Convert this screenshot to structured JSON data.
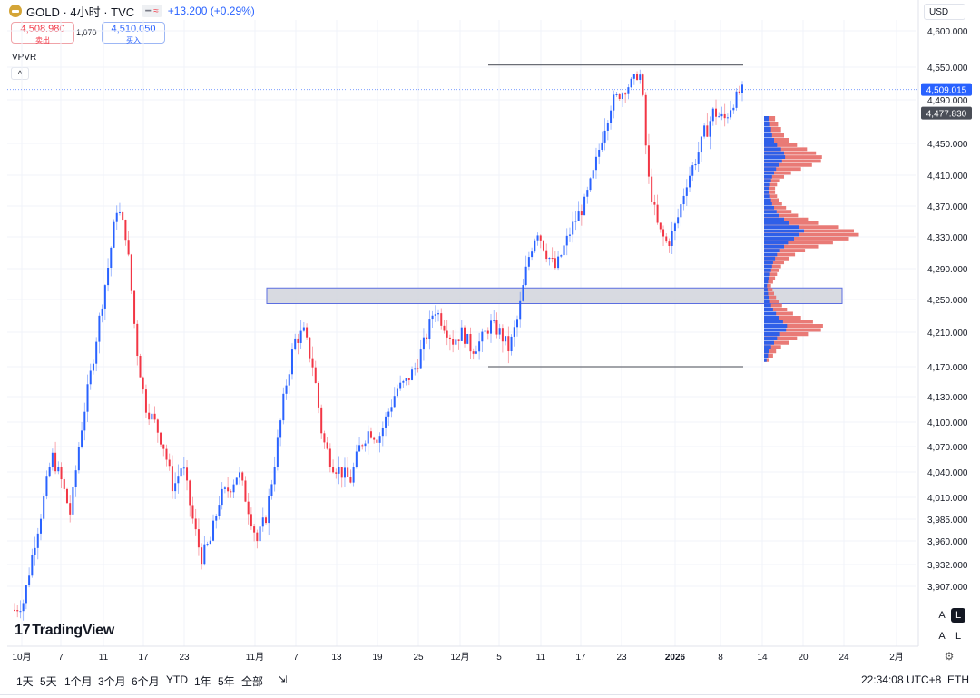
{
  "header": {
    "symbol": "GOLD · 4小时 · TVC",
    "change": "+13.200 (+0.29%)",
    "pill_icons": [
      "minus-icon",
      "wave-icon"
    ]
  },
  "trade": {
    "sell_price": "4,508.980",
    "sell_label": "卖出",
    "spread": "1,070",
    "buy_price": "4,510.050",
    "buy_label": "买入"
  },
  "indicator": {
    "name": "VPVR",
    "collapse": "^"
  },
  "currency": "USD",
  "logo": "TradingView",
  "right_buttons": {
    "a1": "A",
    "l": "L",
    "a2": "A",
    "l2": "L"
  },
  "timeframes": [
    "1天",
    "5天",
    "1个月",
    "3个月",
    "6个月",
    "YTD",
    "1年",
    "5年",
    "全部"
  ],
  "clock": "22:34:08 UTC+8",
  "session": "ETH",
  "colors": {
    "up": "#2962ff",
    "down": "#f23645",
    "vp_up": "#2f5fe8",
    "vp_down": "#e8736f",
    "zone": "#d1d4dc"
  },
  "chart_data": {
    "type": "candlestick",
    "y_ticks": [
      "4,600.000",
      "4,550.000",
      "4,490.000",
      "4,450.000",
      "4,410.000",
      "4,370.000",
      "4,330.000",
      "4,290.000",
      "4,250.000",
      "4,210.000",
      "4,170.000",
      "4,130.000",
      "4,100.000",
      "4,070.000",
      "4,040.000",
      "4,010.000",
      "3,985.000",
      "3,960.000",
      "3,932.000",
      "3,907.000"
    ],
    "x_ticks": [
      "10月",
      "7",
      "11",
      "17",
      "23",
      "11月",
      "7",
      "13",
      "19",
      "25",
      "12月",
      "5",
      "11",
      "17",
      "23",
      "2026",
      "8",
      "14",
      "20",
      "24",
      "2月"
    ],
    "last_price": "4,509.015",
    "poc_price": "4,477.830",
    "close_series": [
      3880,
      3890,
      3950,
      4000,
      4060,
      4030,
      3990,
      4080,
      4150,
      4220,
      4290,
      4370,
      4330,
      4200,
      4120,
      4100,
      4070,
      4020,
      4050,
      3990,
      3940,
      3960,
      4010,
      4020,
      4040,
      4000,
      3960,
      3990,
      4060,
      4140,
      4200,
      4210,
      4170,
      4080,
      4050,
      4040,
      4030,
      4070,
      4090,
      4080,
      4110,
      4140,
      4150,
      4170,
      4200,
      4240,
      4220,
      4200,
      4210,
      4190,
      4200,
      4220,
      4210,
      4190,
      4230,
      4300,
      4340,
      4310,
      4290,
      4320,
      4350,
      4370,
      4410,
      4460,
      4490,
      4500,
      4520,
      4540,
      4400,
      4340,
      4320,
      4350,
      4400,
      4430,
      4460,
      4480,
      4470,
      4490,
      4509
    ],
    "volume_profile": {
      "price_start": 4175,
      "step": 5,
      "up": [
        5,
        8,
        10,
        14,
        20,
        26,
        32,
        44,
        46,
        38,
        30,
        24,
        18,
        14,
        12,
        10,
        8,
        7,
        6,
        8,
        10,
        12,
        14,
        16,
        18,
        22,
        26,
        32,
        40,
        48,
        60,
        70,
        80,
        70,
        50,
        40,
        30,
        25,
        20,
        16,
        14,
        12,
        10,
        10,
        12,
        14,
        16,
        20,
        24,
        30,
        36,
        42,
        40,
        34,
        26,
        20,
        16,
        14,
        12,
        10
      ],
      "down": [
        6,
        10,
        14,
        20,
        30,
        40,
        56,
        70,
        72,
        60,
        44,
        34,
        28,
        22,
        18,
        14,
        12,
        10,
        8,
        10,
        12,
        14,
        16,
        18,
        22,
        28,
        36,
        50,
        70,
        90,
        110,
        120,
        100,
        80,
        60,
        48,
        38,
        30,
        24,
        20,
        16,
        14,
        12,
        12,
        14,
        18,
        24,
        34,
        50,
        66,
        78,
        74,
        64,
        52,
        40,
        30,
        24,
        20,
        16,
        12
      ]
    },
    "zone": {
      "from": 4245,
      "to": 4265,
      "label": ""
    },
    "lines": [
      4553,
      4170
    ]
  }
}
